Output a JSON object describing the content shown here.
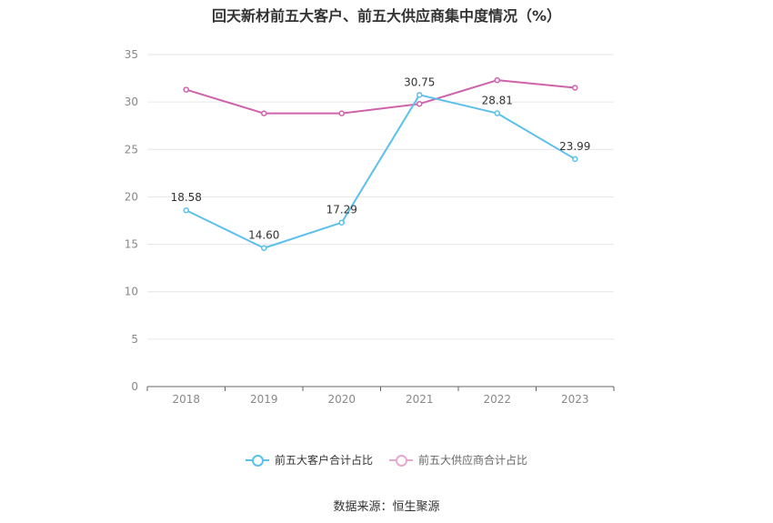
{
  "chart_data": {
    "type": "line",
    "title": "回天新材前五大客户、前五大供应商集中度情况（%）",
    "x": [
      "2018",
      "2019",
      "2020",
      "2021",
      "2022",
      "2023"
    ],
    "ylim": [
      0,
      35
    ],
    "yticks": [
      0,
      5,
      10,
      15,
      20,
      25,
      30,
      35
    ],
    "grid": true,
    "legend_position": "bottom",
    "series": [
      {
        "name": "前五大客户合计占比",
        "color": "#5bc0eb",
        "values": [
          18.58,
          14.6,
          17.29,
          30.75,
          28.81,
          23.99
        ],
        "labels": [
          "18.58",
          "14.60",
          "17.29",
          "30.75",
          "28.81",
          "23.99"
        ]
      },
      {
        "name": "前五大供应商合计占比",
        "color": "#d062ac",
        "values": [
          31.3,
          28.8,
          28.8,
          29.8,
          32.3,
          31.5
        ]
      }
    ]
  },
  "source": "数据来源：恒生聚源"
}
